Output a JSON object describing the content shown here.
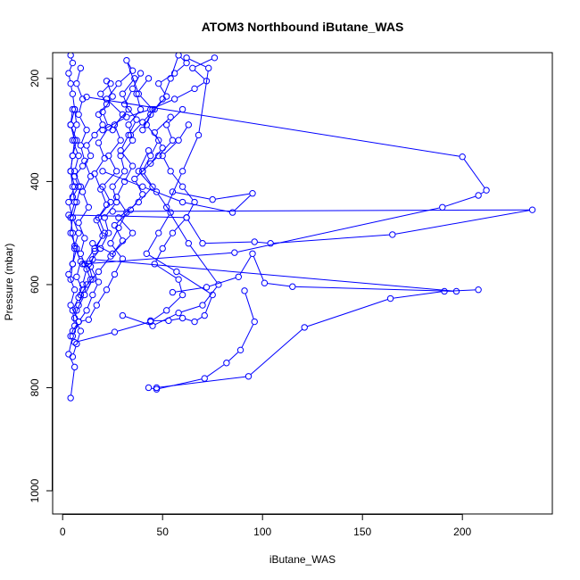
{
  "chart_data": {
    "type": "line",
    "title": "ATOM3 Northbound iButane_WAS",
    "xlabel": "iButane_WAS",
    "ylabel": "Pressure (mbar)",
    "xlim": [
      -5,
      245
    ],
    "ylim": [
      150,
      1045
    ],
    "y_reversed": true,
    "x_ticks": [
      0,
      50,
      100,
      150,
      200
    ],
    "y_ticks": [
      200,
      400,
      600,
      800,
      1000
    ],
    "grid": false,
    "series_color": "#0000ff",
    "series": [
      {
        "x": [
          4,
          6,
          3,
          5,
          8,
          4,
          6,
          3,
          5,
          7,
          4,
          5,
          3,
          6,
          4,
          5,
          7,
          4,
          6,
          5,
          4,
          3,
          5,
          4
        ],
        "y": [
          820,
          760,
          735,
          700,
          672,
          640,
          610,
          580,
          560,
          530,
          500,
          470,
          440,
          410,
          380,
          350,
          320,
          290,
          260,
          230,
          210,
          190,
          170,
          155
        ]
      },
      {
        "x": [
          5,
          7,
          9,
          6,
          8,
          10,
          7,
          9,
          6,
          8,
          5,
          7,
          9,
          6,
          8,
          5,
          7,
          6
        ],
        "y": [
          740,
          715,
          690,
          665,
          640,
          610,
          585,
          555,
          525,
          500,
          470,
          440,
          410,
          380,
          350,
          320,
          290,
          260
        ]
      },
      {
        "x": [
          4,
          6,
          5,
          8,
          10,
          12,
          9,
          11,
          8,
          13,
          10,
          14,
          11,
          9,
          12,
          8,
          10,
          7,
          9
        ],
        "y": [
          700,
          680,
          650,
          625,
          600,
          570,
          540,
          510,
          480,
          450,
          420,
          390,
          360,
          330,
          300,
          270,
          240,
          210,
          180
        ]
      },
      {
        "x": [
          5,
          8,
          12,
          15,
          18,
          14,
          16,
          20,
          17,
          22,
          19,
          16,
          21,
          18,
          23,
          20,
          25,
          22
        ],
        "y": [
          690,
          672,
          650,
          620,
          595,
          565,
          535,
          505,
          475,
          445,
          415,
          385,
          355,
          325,
          295,
          265,
          235,
          205
        ]
      },
      {
        "x": [
          8,
          13,
          17,
          22,
          26,
          30,
          24,
          28,
          32,
          27,
          31,
          35,
          29,
          33,
          37,
          31,
          35,
          39
        ],
        "y": [
          672,
          668,
          640,
          610,
          580,
          550,
          520,
          490,
          460,
          430,
          400,
          370,
          340,
          310,
          280,
          250,
          220,
          190
        ]
      },
      {
        "x": [
          6,
          26,
          44,
          52,
          60,
          58,
          46,
          50,
          55,
          62,
          66,
          60,
          54,
          50,
          58,
          63
        ],
        "y": [
          712,
          692,
          672,
          650,
          620,
          590,
          560,
          530,
          500,
          470,
          440,
          410,
          380,
          350,
          320,
          290
        ]
      },
      {
        "x": [
          43,
          47,
          71,
          82,
          89,
          96,
          91
        ],
        "y": [
          800,
          803,
          782,
          752,
          727,
          672,
          612
        ]
      },
      {
        "x": [
          47,
          93,
          121,
          164,
          191,
          208
        ],
        "y": [
          800,
          778,
          683,
          627,
          613,
          610
        ]
      },
      {
        "x": [
          55,
          72,
          88,
          95,
          101,
          115,
          197,
          15
        ],
        "y": [
          615,
          605,
          585,
          540,
          597,
          604,
          613,
          551
        ]
      },
      {
        "x": [
          3,
          62,
          70,
          96,
          104,
          165,
          235,
          25
        ],
        "y": [
          465,
          470,
          520,
          517,
          520,
          503,
          455,
          458
        ]
      },
      {
        "x": [
          10,
          86,
          190,
          208,
          212,
          200,
          12
        ],
        "y": [
          560,
          538,
          450,
          427,
          417,
          352,
          236
        ]
      },
      {
        "x": [
          20,
          40,
          60,
          85,
          95,
          75,
          55
        ],
        "y": [
          380,
          410,
          440,
          460,
          423,
          435,
          420
        ]
      },
      {
        "x": [
          30,
          45,
          58,
          70,
          78,
          63,
          52,
          60,
          68,
          73,
          62
        ],
        "y": [
          660,
          680,
          655,
          640,
          600,
          520,
          450,
          380,
          310,
          180,
          160
        ]
      },
      {
        "x": [
          15,
          25,
          35,
          28,
          38,
          45,
          40,
          48,
          55,
          52,
          60
        ],
        "y": [
          520,
          540,
          500,
          470,
          440,
          410,
          380,
          350,
          320,
          290,
          260
        ]
      },
      {
        "x": [
          12,
          18,
          24,
          30,
          26,
          34,
          40,
          36,
          44,
          50,
          46,
          54
        ],
        "y": [
          600,
          575,
          545,
          515,
          485,
          455,
          425,
          395,
          365,
          335,
          305,
          275
        ]
      },
      {
        "x": [
          7,
          11,
          15,
          13,
          19,
          23,
          21,
          27,
          25,
          31,
          29,
          35,
          33,
          39,
          37,
          43
        ],
        "y": [
          650,
          620,
          590,
          560,
          530,
          500,
          470,
          440,
          410,
          380,
          350,
          320,
          290,
          260,
          230,
          200
        ]
      },
      {
        "x": [
          9,
          14,
          11,
          16,
          21,
          18,
          24,
          20,
          27,
          23,
          29,
          26,
          33,
          30,
          36
        ],
        "y": [
          620,
          590,
          560,
          530,
          500,
          470,
          440,
          410,
          380,
          350,
          320,
          290,
          260,
          230,
          200
        ]
      },
      {
        "x": [
          44,
          53,
          60,
          66,
          71,
          75,
          57,
          42,
          48,
          54,
          47,
          38,
          43
        ],
        "y": [
          670,
          670,
          665,
          672,
          660,
          620,
          575,
          540,
          500,
          460,
          420,
          380,
          340
        ]
      },
      {
        "x": [
          20,
          32,
          44,
          56,
          66,
          72,
          65,
          76
        ],
        "y": [
          300,
          275,
          260,
          240,
          220,
          205,
          180,
          160
        ]
      },
      {
        "x": [
          34,
          40,
          46,
          52,
          48,
          56,
          62,
          58,
          54,
          50,
          44,
          40
        ],
        "y": [
          310,
          285,
          260,
          235,
          210,
          190,
          170,
          155,
          200,
          240,
          270,
          300
        ]
      },
      {
        "x": [
          25,
          30,
          22,
          28,
          35,
          32,
          38,
          45,
          42,
          48,
          44,
          40
        ],
        "y": [
          300,
          270,
          240,
          210,
          185,
          165,
          230,
          260,
          290,
          320,
          350,
          380
        ]
      },
      {
        "x": [
          5,
          8,
          6,
          10,
          14,
          12,
          16,
          20,
          18,
          22,
          19,
          24
        ],
        "y": [
          430,
          410,
          390,
          370,
          350,
          330,
          310,
          290,
          270,
          250,
          230,
          210
        ]
      },
      {
        "x": [
          4,
          5,
          6,
          5,
          4,
          6,
          5,
          4,
          5,
          6,
          4,
          5
        ],
        "y": [
          590,
          560,
          530,
          500,
          470,
          440,
          410,
          380,
          350,
          320,
          290,
          260
        ]
      }
    ]
  }
}
